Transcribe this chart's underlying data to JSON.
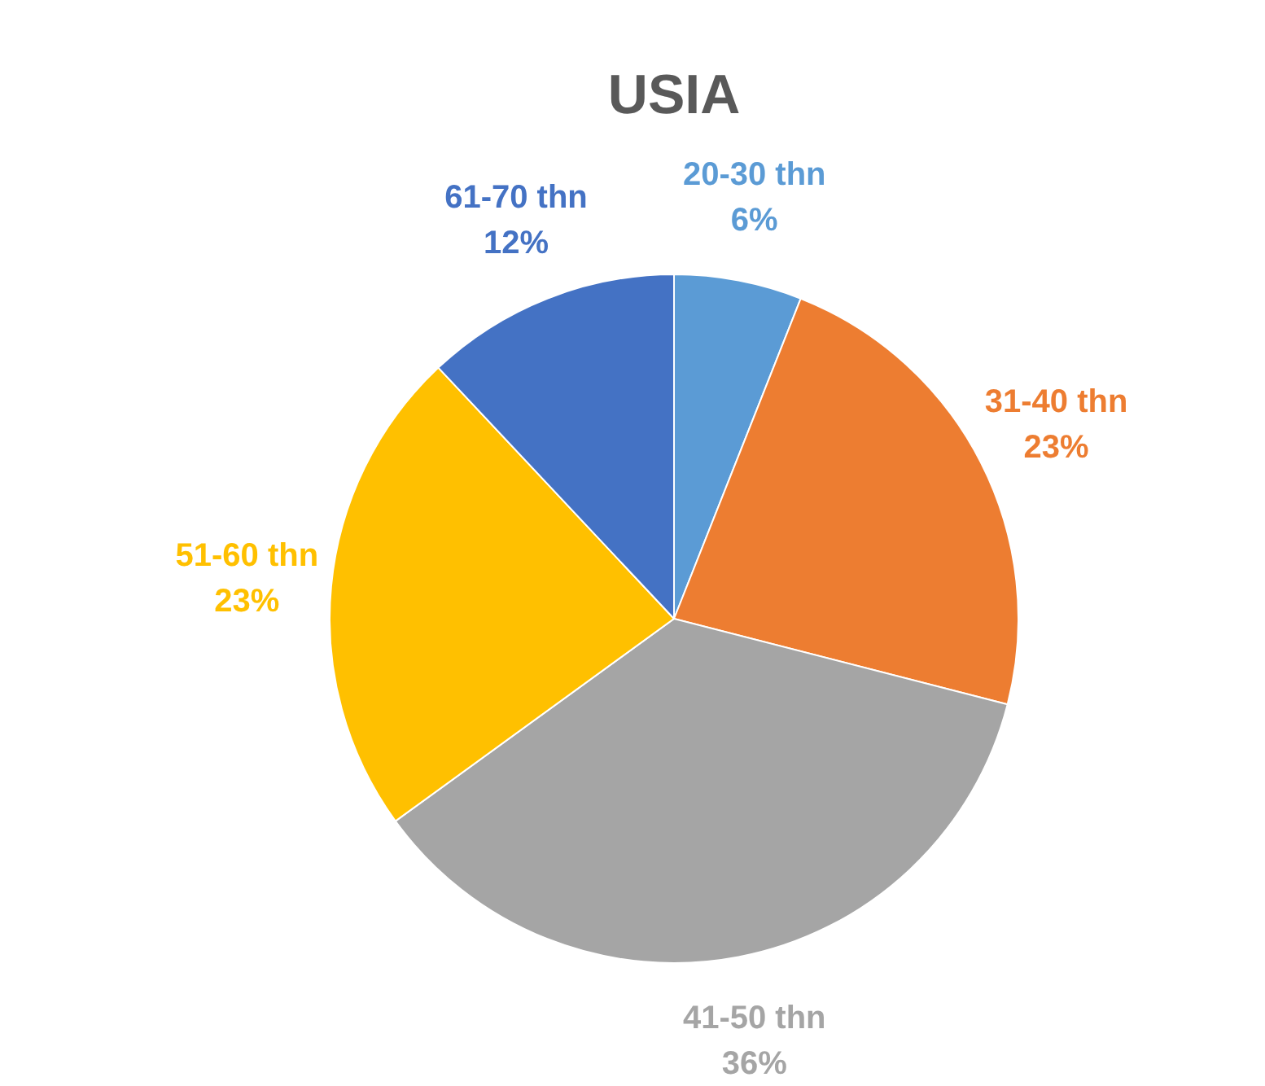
{
  "chart_data": {
    "type": "pie",
    "title": "USIA",
    "categories": [
      "20-30 thn",
      "31-40 thn",
      "41-50 thn",
      "51-60 thn",
      "61-70 thn"
    ],
    "values": [
      6,
      23,
      36,
      23,
      12
    ],
    "value_labels": [
      "6%",
      "23%",
      "36%",
      "23%",
      "12%"
    ],
    "colors": [
      "#5b9bd5",
      "#ed7d31",
      "#a5a5a5",
      "#ffc000",
      "#4472c4"
    ],
    "legend": false
  }
}
